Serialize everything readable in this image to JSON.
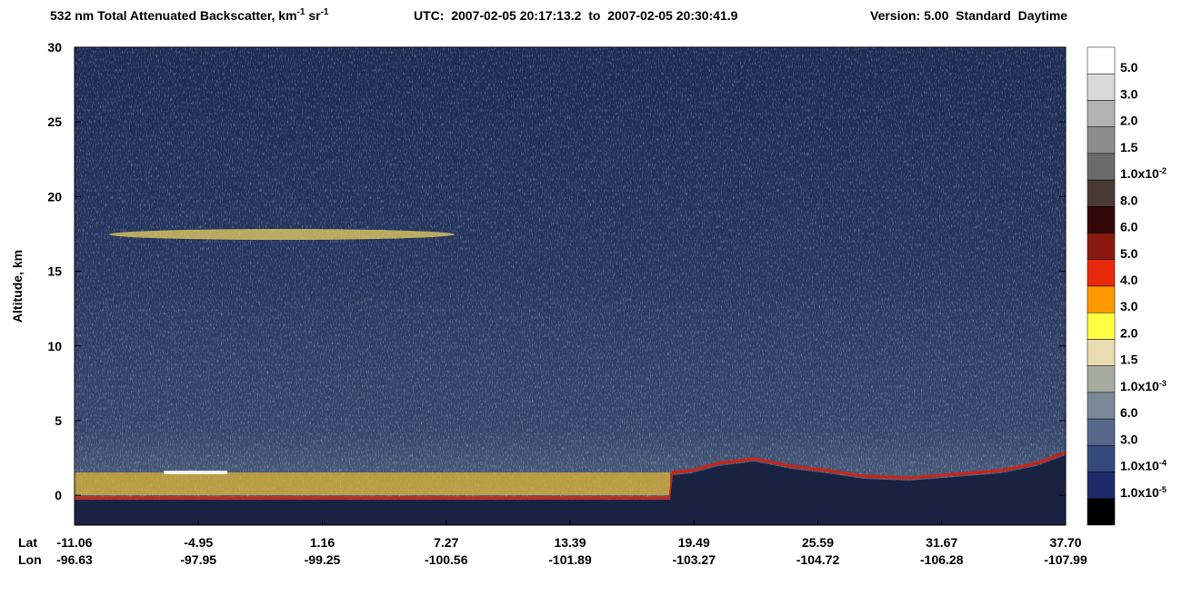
{
  "chart_data": {
    "type": "curtain",
    "title": {
      "main": "532 nm Total Attenuated Backscatter, km",
      "sup1": "-1",
      "unit2": " sr",
      "sup2": "-1",
      "time": "UTC:  2007-02-05 20:17:13.2  to  2007-02-05 20:30:41.9",
      "version": "Version: 5.00  Standard  Daytime"
    },
    "ylabel": "Altitude, km",
    "ylim": [
      -2,
      30
    ],
    "yticks": [
      0,
      5,
      10,
      15,
      20,
      25,
      30
    ],
    "x_rows": [
      {
        "name": "Lat",
        "labels": [
          "-11.06",
          "-4.95",
          "1.16",
          "7.27",
          "13.39",
          "19.49",
          "25.59",
          "31.67",
          "37.70"
        ]
      },
      {
        "name": "Lon",
        "labels": [
          "-96.63",
          "-97.95",
          "-99.25",
          "-100.56",
          "-101.89",
          "-103.27",
          "-104.72",
          "-106.28",
          "-107.99"
        ]
      }
    ],
    "colorbar": {
      "colors": [
        "#ffffff",
        "#d9d9d9",
        "#b3b3b3",
        "#8c8c8c",
        "#6b6b6b",
        "#4a3a36",
        "#320808",
        "#8a1a10",
        "#e8280a",
        "#ff9900",
        "#ffff44",
        "#e8dcb0",
        "#a8aca0",
        "#7a8898",
        "#55688a",
        "#364a7a",
        "#1e2a6a",
        "#000000"
      ],
      "labels": [
        {
          "base": "5.0"
        },
        {
          "base": "3.0"
        },
        {
          "base": "2.0"
        },
        {
          "base": "1.5"
        },
        {
          "base": "1.0x10",
          "exp": "-2"
        },
        {
          "base": "8.0"
        },
        {
          "base": "6.0"
        },
        {
          "base": "5.0"
        },
        {
          "base": "4.0"
        },
        {
          "base": "3.0"
        },
        {
          "base": "2.0"
        },
        {
          "base": "1.5"
        },
        {
          "base": "1.0x10",
          "exp": "-3"
        },
        {
          "base": "6.0"
        },
        {
          "base": "3.0"
        },
        {
          "base": "1.0x10",
          "exp": "-4"
        },
        {
          "base": "1.0x10",
          "exp": "-5"
        }
      ]
    }
  }
}
